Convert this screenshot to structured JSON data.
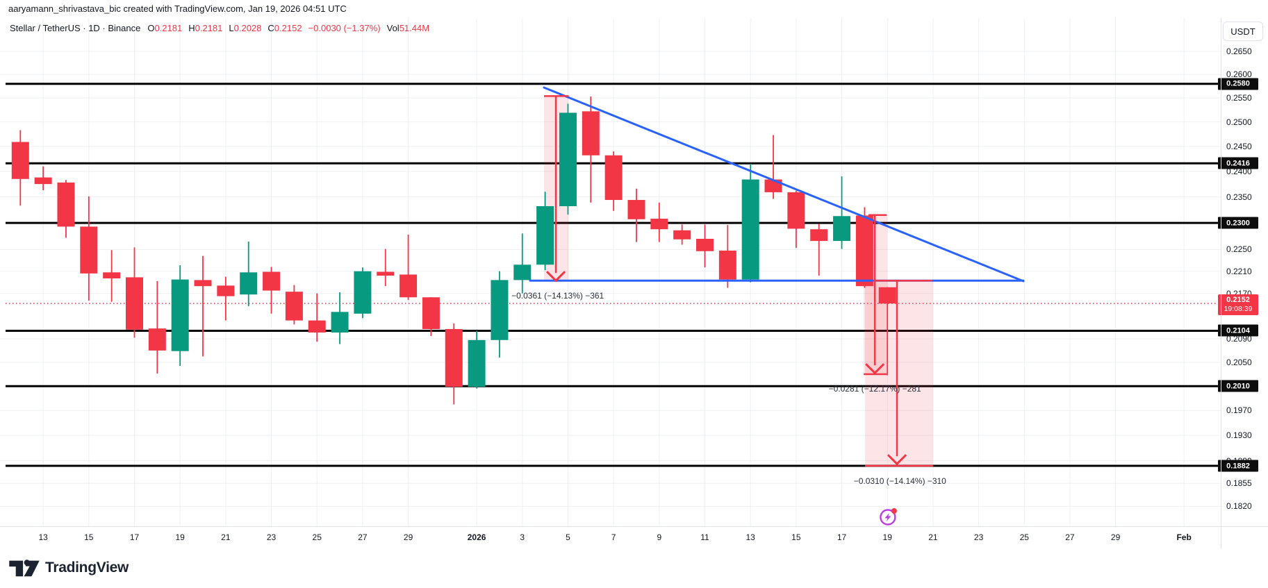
{
  "topbar": {
    "attribution": "aaryamann_shrivastava_bic created with TradingView.com, Jan 19, 2026 04:51 UTC"
  },
  "legend": {
    "symbol": "Stellar / TetherUS · 1D · Binance",
    "items": [
      {
        "label": "O",
        "value": "0.2181"
      },
      {
        "label": "H",
        "value": "0.2181"
      },
      {
        "label": "L",
        "value": "0.2028"
      },
      {
        "label": "C",
        "value": "0.2152"
      },
      {
        "label": "",
        "value": "−0.0030 (−1.37%)"
      },
      {
        "label": "Vol",
        "value": "51.44M"
      }
    ]
  },
  "price_axis": {
    "currency_button": "USDT",
    "ticks": [
      "0.2650",
      "0.2600",
      "0.2550",
      "0.2500",
      "0.2450",
      "0.2400",
      "0.2350",
      "0.2250",
      "0.2210",
      "0.2170",
      "0.2090",
      "0.2050",
      "0.1970",
      "0.1930",
      "0.1890",
      "0.1855",
      "0.1820"
    ],
    "level_badges": [
      "0.2580",
      "0.2416",
      "0.2300",
      "0.2104",
      "0.2010",
      "0.1882"
    ],
    "current": {
      "price": "0.2152",
      "countdown": "19:08:39"
    }
  },
  "time_axis": {
    "labels": [
      {
        "text": "13",
        "day": 1
      },
      {
        "text": "15",
        "day": 3
      },
      {
        "text": "17",
        "day": 5
      },
      {
        "text": "19",
        "day": 7
      },
      {
        "text": "21",
        "day": 9
      },
      {
        "text": "23",
        "day": 11
      },
      {
        "text": "25",
        "day": 13
      },
      {
        "text": "27",
        "day": 15
      },
      {
        "text": "29",
        "day": 17
      },
      {
        "text": "2026",
        "day": 20,
        "bold": true
      },
      {
        "text": "3",
        "day": 22
      },
      {
        "text": "5",
        "day": 24
      },
      {
        "text": "7",
        "day": 26
      },
      {
        "text": "9",
        "day": 28
      },
      {
        "text": "11",
        "day": 30
      },
      {
        "text": "13",
        "day": 32
      },
      {
        "text": "15",
        "day": 34
      },
      {
        "text": "17",
        "day": 36
      },
      {
        "text": "19",
        "day": 38
      },
      {
        "text": "21",
        "day": 40
      },
      {
        "text": "23",
        "day": 42
      },
      {
        "text": "25",
        "day": 44
      },
      {
        "text": "27",
        "day": 46
      },
      {
        "text": "29",
        "day": 48
      },
      {
        "text": "Feb",
        "day": 51,
        "bold": true
      }
    ]
  },
  "chart_data": {
    "type": "candlestick",
    "title": "Stellar / TetherUS 1D Binance",
    "scale": "log",
    "ylim": [
      0.18,
      0.268
    ],
    "grid": true,
    "candles": [
      {
        "date": "Dec 12",
        "o": 0.2459,
        "h": 0.2483,
        "l": 0.2333,
        "c": 0.2385
      },
      {
        "date": "Dec 13",
        "o": 0.2388,
        "h": 0.241,
        "l": 0.2363,
        "c": 0.2375
      },
      {
        "date": "Dec 14",
        "o": 0.2378,
        "h": 0.2383,
        "l": 0.2272,
        "c": 0.2293
      },
      {
        "date": "Dec 15",
        "o": 0.2293,
        "h": 0.2351,
        "l": 0.2157,
        "c": 0.2206
      },
      {
        "date": "Dec 16",
        "o": 0.2208,
        "h": 0.2249,
        "l": 0.2155,
        "c": 0.2197
      },
      {
        "date": "Dec 17",
        "o": 0.2199,
        "h": 0.2254,
        "l": 0.2092,
        "c": 0.2106
      },
      {
        "date": "Dec 18",
        "o": 0.2108,
        "h": 0.2192,
        "l": 0.2031,
        "c": 0.207
      },
      {
        "date": "Dec 19",
        "o": 0.2069,
        "h": 0.2221,
        "l": 0.2044,
        "c": 0.2195
      },
      {
        "date": "Dec 20",
        "o": 0.2194,
        "h": 0.2238,
        "l": 0.206,
        "c": 0.2183
      },
      {
        "date": "Dec 21",
        "o": 0.2184,
        "h": 0.22,
        "l": 0.2122,
        "c": 0.2165
      },
      {
        "date": "Dec 22",
        "o": 0.2168,
        "h": 0.2265,
        "l": 0.2147,
        "c": 0.2208
      },
      {
        "date": "Dec 23",
        "o": 0.2209,
        "h": 0.2218,
        "l": 0.2134,
        "c": 0.2175
      },
      {
        "date": "Dec 24",
        "o": 0.2173,
        "h": 0.2185,
        "l": 0.2115,
        "c": 0.2122
      },
      {
        "date": "Dec 25",
        "o": 0.2122,
        "h": 0.217,
        "l": 0.2085,
        "c": 0.2101
      },
      {
        "date": "Dec 26",
        "o": 0.2101,
        "h": 0.2172,
        "l": 0.2081,
        "c": 0.2137
      },
      {
        "date": "Dec 27",
        "o": 0.2134,
        "h": 0.2217,
        "l": 0.2126,
        "c": 0.221
      },
      {
        "date": "Dec 28",
        "o": 0.2209,
        "h": 0.2251,
        "l": 0.2183,
        "c": 0.2202
      },
      {
        "date": "Dec 29",
        "o": 0.2204,
        "h": 0.2278,
        "l": 0.2158,
        "c": 0.2163
      },
      {
        "date": "Dec 30",
        "o": 0.2163,
        "h": 0.2163,
        "l": 0.2095,
        "c": 0.2107
      },
      {
        "date": "Dec 31",
        "o": 0.2107,
        "h": 0.2117,
        "l": 0.198,
        "c": 0.2009
      },
      {
        "date": "Jan 1",
        "o": 0.2009,
        "h": 0.2104,
        "l": 0.2006,
        "c": 0.2088
      },
      {
        "date": "Jan 2",
        "o": 0.2088,
        "h": 0.221,
        "l": 0.2058,
        "c": 0.2194
      },
      {
        "date": "Jan 3",
        "o": 0.2194,
        "h": 0.228,
        "l": 0.217,
        "c": 0.2222
      },
      {
        "date": "Jan 4",
        "o": 0.2222,
        "h": 0.236,
        "l": 0.2212,
        "c": 0.2332
      },
      {
        "date": "Jan 5",
        "o": 0.2332,
        "h": 0.2538,
        "l": 0.2316,
        "c": 0.2519
      },
      {
        "date": "Jan 6",
        "o": 0.2522,
        "h": 0.2553,
        "l": 0.2339,
        "c": 0.2432
      },
      {
        "date": "Jan 7",
        "o": 0.2432,
        "h": 0.244,
        "l": 0.2323,
        "c": 0.2344
      },
      {
        "date": "Jan 8",
        "o": 0.2344,
        "h": 0.2366,
        "l": 0.2264,
        "c": 0.2307
      },
      {
        "date": "Jan 9",
        "o": 0.2308,
        "h": 0.2339,
        "l": 0.2264,
        "c": 0.2288
      },
      {
        "date": "Jan 10",
        "o": 0.2286,
        "h": 0.2297,
        "l": 0.2259,
        "c": 0.2269
      },
      {
        "date": "Jan 11",
        "o": 0.227,
        "h": 0.2297,
        "l": 0.2217,
        "c": 0.2247
      },
      {
        "date": "Jan 12",
        "o": 0.2248,
        "h": 0.2296,
        "l": 0.218,
        "c": 0.2195
      },
      {
        "date": "Jan 13",
        "o": 0.2195,
        "h": 0.2415,
        "l": 0.219,
        "c": 0.2384
      },
      {
        "date": "Jan 14",
        "o": 0.2384,
        "h": 0.2473,
        "l": 0.2346,
        "c": 0.2359
      },
      {
        "date": "Jan 15",
        "o": 0.2359,
        "h": 0.2362,
        "l": 0.2253,
        "c": 0.2289
      },
      {
        "date": "Jan 16",
        "o": 0.2288,
        "h": 0.2298,
        "l": 0.2202,
        "c": 0.2266
      },
      {
        "date": "Jan 17",
        "o": 0.2266,
        "h": 0.239,
        "l": 0.2251,
        "c": 0.2313
      },
      {
        "date": "Jan 18",
        "o": 0.2314,
        "h": 0.233,
        "l": 0.218,
        "c": 0.2183
      },
      {
        "date": "Jan 19",
        "o": 0.2181,
        "h": 0.2181,
        "l": 0.2028,
        "c": 0.2152
      }
    ],
    "horizontal_levels": [
      0.258,
      0.2416,
      0.23,
      0.2104,
      0.201,
      0.1882
    ],
    "current_price": 0.2152,
    "trendlines": [
      {
        "name": "descending-resistance",
        "from": {
          "day": 22.95,
          "price": 0.2572
        },
        "to": {
          "day": 43.96,
          "price": 0.2192
        }
      },
      {
        "name": "horizontal-support",
        "from": {
          "day": 22.34,
          "price": 0.2193
        },
        "to": {
          "day": 43.96,
          "price": 0.2193
        }
      }
    ],
    "projections": [
      {
        "text": "−0.0361 (−14.13%) −361",
        "arrow_day": 23.47,
        "from_price": 0.2554,
        "to_price": 0.2193,
        "band": [
          22.95,
          24.03
        ],
        "band_bottom": 0.2193,
        "top_cap": [
          22.95,
          24.03
        ],
        "label_day": 23.55,
        "label_price": 0.2166
      },
      {
        "text": "−0.0281 (−12.17%) −281",
        "arrow_day": 37.45,
        "from_price": 0.2315,
        "to_price": 0.2032,
        "band": [
          36.96,
          38.0
        ],
        "band_bottom": 0.203,
        "top_cap": [
          37.17,
          37.97
        ],
        "bottom_cap": [
          36.96,
          37.97
        ],
        "label_day": 37.45,
        "label_price": 0.2006
      },
      {
        "text": "−0.0310 (−14.14%) −310",
        "arrow_day": 38.42,
        "from_price": 0.2193,
        "to_price": 0.1885,
        "band": [
          37.02,
          40.0
        ],
        "band_bottom": 0.1882,
        "top_cap": [
          37.38,
          39.97
        ],
        "bottom_cap": [
          37.02,
          40.0
        ],
        "label_day": 38.55,
        "label_price": 0.1858
      }
    ],
    "colors": {
      "up": "#089981",
      "down": "#f23645",
      "trendline": "#2962ff",
      "level_line": "#000000",
      "projection": "#f23645",
      "band": "rgba(242,54,69,0.13)",
      "grid": "#eef0f3",
      "axis_text": "#131722",
      "badge_bg": "#0d0d0d",
      "current_badge": "#f23645",
      "events_icon": "#bb3be0"
    },
    "events_icon": {
      "day": 38.02
    }
  },
  "logo": {
    "text": "TradingView"
  }
}
